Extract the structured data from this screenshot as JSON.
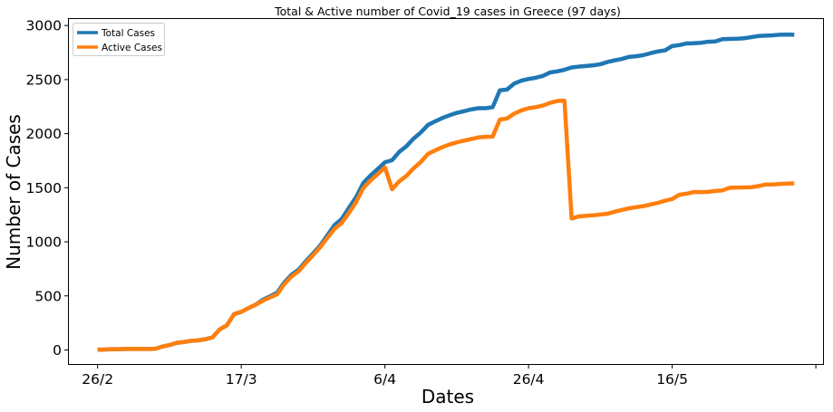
{
  "chart_data": {
    "type": "line",
    "title": "Total & Active number of Covid_19 cases in Greece (97 days)",
    "xlabel": "Dates",
    "ylabel": "Number of Cases",
    "x_tick_labels": [
      "26/2",
      "17/3",
      "6/4",
      "26/4",
      "16/5"
    ],
    "x_tick_positions": [
      0,
      20,
      40,
      60,
      80
    ],
    "ylim": [
      -130,
      3060
    ],
    "y_ticks": [
      0,
      500,
      1000,
      1500,
      2000,
      2500,
      3000
    ],
    "grid": false,
    "legend_position": "top-left",
    "series": [
      {
        "name": "Total Cases",
        "color": "#1f77b4",
        "values": [
          3,
          4,
          7,
          7,
          9,
          9,
          9,
          9,
          10,
          31,
          45,
          66,
          73,
          84,
          89,
          99,
          117,
          190,
          228,
          331,
          352,
          387,
          418,
          464,
          495,
          530,
          624,
          695,
          743,
          821,
          892,
          966,
          1061,
          1156,
          1212,
          1314,
          1415,
          1544,
          1613,
          1673,
          1735,
          1755,
          1832,
          1884,
          1955,
          2011,
          2081,
          2114,
          2145,
          2170,
          2192,
          2207,
          2224,
          2235,
          2235,
          2245,
          2401,
          2408,
          2463,
          2490,
          2506,
          2517,
          2534,
          2566,
          2576,
          2591,
          2612,
          2620,
          2626,
          2632,
          2642,
          2663,
          2678,
          2691,
          2710,
          2716,
          2726,
          2744,
          2760,
          2770,
          2810,
          2819,
          2834,
          2836,
          2840,
          2850,
          2853,
          2874,
          2876,
          2878,
          2882,
          2892,
          2903,
          2906,
          2909,
          2915,
          2917,
          2915
        ]
      },
      {
        "name": "Active Cases",
        "color": "#ff7f0e",
        "values": [
          3,
          4,
          7,
          7,
          9,
          9,
          9,
          9,
          10,
          31,
          45,
          66,
          73,
          84,
          89,
          99,
          117,
          190,
          228,
          331,
          352,
          387,
          418,
          455,
          486,
          515,
          609,
          680,
          728,
          806,
          877,
          951,
          1038,
          1121,
          1175,
          1268,
          1369,
          1498,
          1567,
          1626,
          1688,
          1486,
          1560,
          1610,
          1680,
          1738,
          1813,
          1845,
          1875,
          1900,
          1920,
          1935,
          1950,
          1965,
          1970,
          1973,
          2130,
          2140,
          2185,
          2215,
          2235,
          2245,
          2260,
          2285,
          2302,
          2305,
          1215,
          1235,
          1240,
          1245,
          1252,
          1260,
          1278,
          1295,
          1310,
          1320,
          1330,
          1345,
          1360,
          1380,
          1395,
          1435,
          1445,
          1460,
          1460,
          1462,
          1470,
          1475,
          1500,
          1502,
          1503,
          1505,
          1515,
          1530,
          1530,
          1535,
          1538,
          1540
        ]
      }
    ]
  }
}
